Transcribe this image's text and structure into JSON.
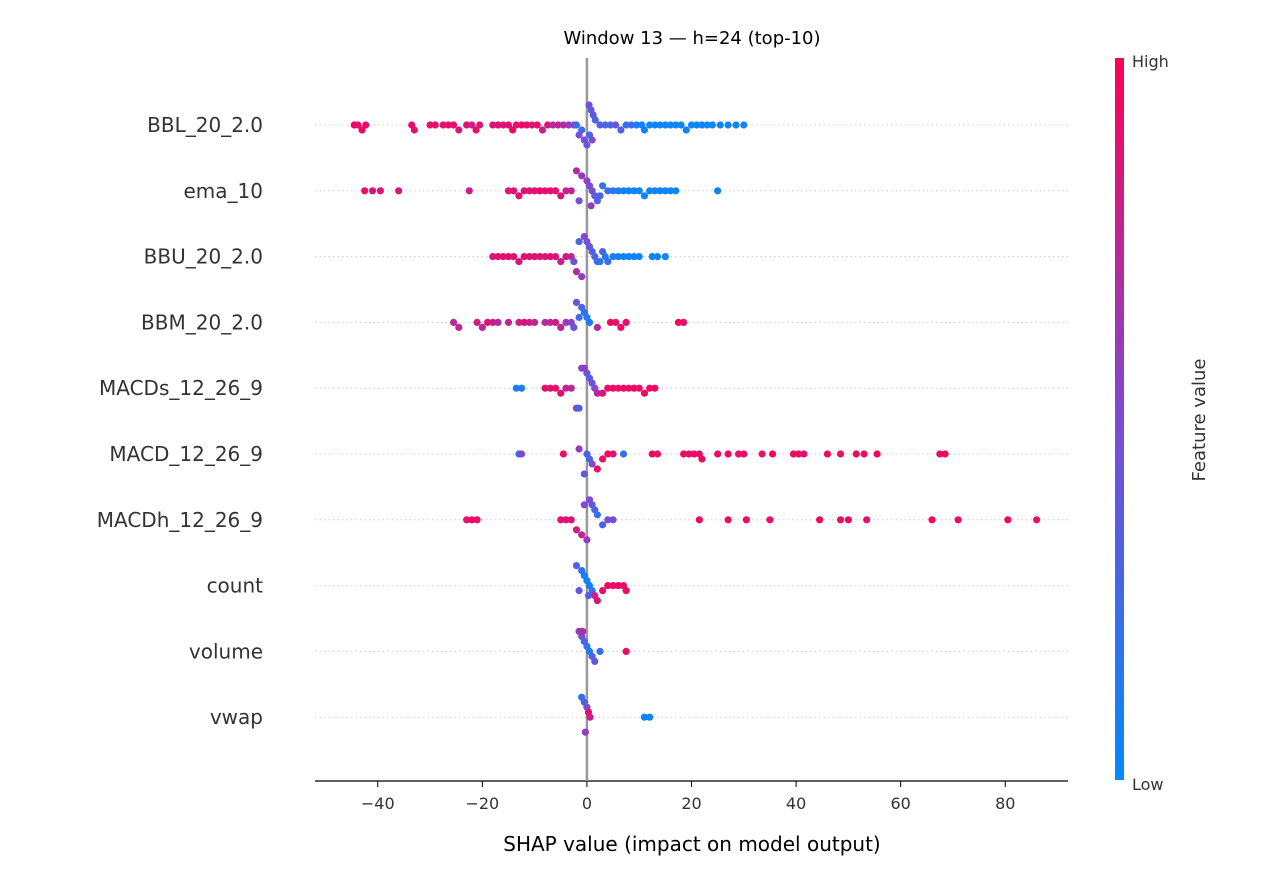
{
  "chart_data": {
    "type": "scatter",
    "subtype": "shap-beeswarm",
    "title": "Window 13 — h=24 (top-10)",
    "xlabel": "SHAP value (impact on model output)",
    "xlim": [
      -52,
      92
    ],
    "xticks": [
      -40,
      -20,
      0,
      20,
      40,
      60,
      80
    ],
    "colorbar": {
      "label": "Feature value",
      "high_label": "High",
      "low_label": "Low",
      "low_color": "#008bfb",
      "high_color": "#ff0052"
    },
    "features": [
      {
        "name": "BBL_20_2.0",
        "points": [
          [
            -44.5,
            0.95
          ],
          [
            -43.8,
            0.9
          ],
          [
            -43,
            0.95
          ],
          [
            -42.3,
            0.9
          ],
          [
            -33.5,
            0.92
          ],
          [
            -33,
            0.9
          ],
          [
            -30,
            0.9
          ],
          [
            -29,
            0.92
          ],
          [
            -27.5,
            0.9
          ],
          [
            -26.5,
            0.88
          ],
          [
            -25.5,
            0.9
          ],
          [
            -24.5,
            0.85
          ],
          [
            -23,
            0.88
          ],
          [
            -22,
            0.8
          ],
          [
            -21.2,
            0.9
          ],
          [
            -20.5,
            0.85
          ],
          [
            -18,
            0.85
          ],
          [
            -17,
            0.9
          ],
          [
            -16,
            0.85
          ],
          [
            -15,
            0.9
          ],
          [
            -14.2,
            0.95
          ],
          [
            -13.5,
            0.9
          ],
          [
            -12.5,
            0.95
          ],
          [
            -11.5,
            0.9
          ],
          [
            -10.5,
            0.85
          ],
          [
            -9.5,
            0.9
          ],
          [
            -8.5,
            0.8
          ],
          [
            -7.5,
            0.85
          ],
          [
            -6.5,
            0.7
          ],
          [
            -5.5,
            0.75
          ],
          [
            -4.5,
            0.7
          ],
          [
            -3.5,
            0.6
          ],
          [
            -2.5,
            0.55
          ],
          [
            -1.5,
            0.5
          ],
          [
            -0.5,
            0.45
          ],
          [
            0,
            0.4
          ],
          [
            0.4,
            0.45
          ],
          [
            0.8,
            0.35
          ],
          [
            1.2,
            0.4
          ],
          [
            1.6,
            0.3
          ],
          [
            2.5,
            0.35
          ],
          [
            3.5,
            0.3
          ],
          [
            4.5,
            0.3
          ],
          [
            5.5,
            0.4
          ],
          [
            6.5,
            0.35
          ],
          [
            7.5,
            0.2
          ],
          [
            8.5,
            0.25
          ],
          [
            9.5,
            0.1
          ],
          [
            10.5,
            0.1
          ],
          [
            11,
            0.05
          ],
          [
            12,
            0.05
          ],
          [
            13,
            0.05
          ],
          [
            14,
            0.05
          ],
          [
            15,
            0.05
          ],
          [
            16,
            0.05
          ],
          [
            17,
            0.05
          ],
          [
            18,
            0.05
          ],
          [
            19,
            0.05
          ],
          [
            20,
            0.05
          ],
          [
            21,
            0.05
          ],
          [
            22,
            0.05
          ],
          [
            23,
            0.05
          ],
          [
            24,
            0.05
          ],
          [
            25.5,
            0.05
          ],
          [
            27,
            0.05
          ],
          [
            28.5,
            0.05
          ],
          [
            30,
            0.05
          ],
          [
            -2,
            0.2
          ],
          [
            -1,
            0.25
          ],
          [
            0.5,
            0.3
          ],
          [
            1,
            0.5
          ]
        ]
      },
      {
        "name": "ema_10",
        "points": [
          [
            -42.5,
            0.9
          ],
          [
            -41,
            0.85
          ],
          [
            -39.5,
            0.88
          ],
          [
            -36,
            0.85
          ],
          [
            -22.5,
            0.8
          ],
          [
            -15,
            0.88
          ],
          [
            -14,
            0.85
          ],
          [
            -13,
            0.9
          ],
          [
            -12,
            0.88
          ],
          [
            -11,
            0.9
          ],
          [
            -10,
            0.85
          ],
          [
            -9,
            0.95
          ],
          [
            -8,
            0.9
          ],
          [
            -7,
            0.92
          ],
          [
            -6,
            0.88
          ],
          [
            -5,
            0.85
          ],
          [
            -4,
            0.8
          ],
          [
            -3,
            0.75
          ],
          [
            -2,
            0.7
          ],
          [
            -1,
            0.6
          ],
          [
            0,
            0.55
          ],
          [
            0.5,
            0.5
          ],
          [
            1,
            0.45
          ],
          [
            1.5,
            0.4
          ],
          [
            2,
            0.35
          ],
          [
            2.5,
            0.3
          ],
          [
            3,
            0.2
          ],
          [
            4,
            0.25
          ],
          [
            5,
            0.15
          ],
          [
            6,
            0.1
          ],
          [
            7,
            0.1
          ],
          [
            8,
            0.05
          ],
          [
            9,
            0.05
          ],
          [
            10,
            0.05
          ],
          [
            11,
            0.05
          ],
          [
            12,
            0.05
          ],
          [
            13,
            0.05
          ],
          [
            14,
            0.05
          ],
          [
            15,
            0.05
          ],
          [
            16,
            0.05
          ],
          [
            17,
            0.05
          ],
          [
            25,
            0.05
          ],
          [
            -1.5,
            0.5
          ],
          [
            0.8,
            0.6
          ]
        ]
      },
      {
        "name": "BBU_20_2.0",
        "points": [
          [
            -18,
            0.85
          ],
          [
            -17,
            0.9
          ],
          [
            -16,
            0.88
          ],
          [
            -15,
            0.9
          ],
          [
            -14,
            0.85
          ],
          [
            -13,
            0.88
          ],
          [
            -12,
            0.9
          ],
          [
            -11,
            0.85
          ],
          [
            -10,
            0.9
          ],
          [
            -9,
            0.88
          ],
          [
            -8,
            0.85
          ],
          [
            -7,
            0.9
          ],
          [
            -6,
            0.85
          ],
          [
            -5,
            0.8
          ],
          [
            -4,
            0.85
          ],
          [
            -3,
            0.75
          ],
          [
            -2,
            0.7
          ],
          [
            -1,
            0.6
          ],
          [
            -0.5,
            0.55
          ],
          [
            0,
            0.45
          ],
          [
            0.5,
            0.4
          ],
          [
            1,
            0.35
          ],
          [
            1.5,
            0.3
          ],
          [
            2,
            0.25
          ],
          [
            2.5,
            0.2
          ],
          [
            3,
            0.3
          ],
          [
            3.5,
            0.15
          ],
          [
            4,
            0.2
          ],
          [
            5,
            0.1
          ],
          [
            6,
            0.1
          ],
          [
            7,
            0.05
          ],
          [
            8,
            0.05
          ],
          [
            9,
            0.05
          ],
          [
            10,
            0.05
          ],
          [
            12.5,
            0.05
          ],
          [
            13.5,
            0.05
          ],
          [
            15,
            0.05
          ],
          [
            -1.5,
            0.3
          ],
          [
            -2.5,
            0.4
          ]
        ]
      },
      {
        "name": "BBM_20_2.0",
        "points": [
          [
            -25.5,
            0.7
          ],
          [
            -24.5,
            0.75
          ],
          [
            -21,
            0.8
          ],
          [
            -20,
            0.75
          ],
          [
            -19,
            0.85
          ],
          [
            -18,
            0.8
          ],
          [
            -17,
            0.7
          ],
          [
            -15,
            0.75
          ],
          [
            -13,
            0.8
          ],
          [
            -12,
            0.85
          ],
          [
            -11,
            0.8
          ],
          [
            -10,
            0.75
          ],
          [
            -8,
            0.7
          ],
          [
            -7,
            0.75
          ],
          [
            -6,
            0.8
          ],
          [
            -5,
            0.75
          ],
          [
            -4,
            0.6
          ],
          [
            -3,
            0.55
          ],
          [
            -2,
            0.45
          ],
          [
            -1,
            0.3
          ],
          [
            -0.5,
            0.2
          ],
          [
            0,
            0.15
          ],
          [
            0.5,
            0.1
          ],
          [
            2,
            0.7
          ],
          [
            4.5,
            0.95
          ],
          [
            5.5,
            0.9
          ],
          [
            6.5,
            0.92
          ],
          [
            7.5,
            0.9
          ],
          [
            17.5,
            0.95
          ],
          [
            18.5,
            0.9
          ],
          [
            -1.5,
            0.25
          ],
          [
            -2.5,
            0.4
          ]
        ]
      },
      {
        "name": "MACDs_12_26_9",
        "points": [
          [
            -13.5,
            0.1
          ],
          [
            -12.5,
            0.12
          ],
          [
            -8,
            0.9
          ],
          [
            -7,
            0.88
          ],
          [
            -6,
            0.92
          ],
          [
            -5,
            0.85
          ],
          [
            -4,
            0.8
          ],
          [
            -3,
            0.75
          ],
          [
            -2,
            0.6
          ],
          [
            -1,
            0.5
          ],
          [
            0,
            0.4
          ],
          [
            0.5,
            0.35
          ],
          [
            1,
            0.45
          ],
          [
            1.5,
            0.5
          ],
          [
            2,
            0.75
          ],
          [
            3,
            0.85
          ],
          [
            4,
            0.9
          ],
          [
            5,
            0.95
          ],
          [
            6,
            0.9
          ],
          [
            7,
            0.95
          ],
          [
            8,
            0.92
          ],
          [
            9,
            0.95
          ],
          [
            10,
            0.9
          ],
          [
            11,
            0.95
          ],
          [
            12,
            0.92
          ],
          [
            13,
            0.95
          ],
          [
            -1.5,
            0.3
          ],
          [
            -0.5,
            0.6
          ]
        ]
      },
      {
        "name": "MACD_12_26_9",
        "points": [
          [
            -13,
            0.2
          ],
          [
            -12.5,
            0.5
          ],
          [
            -4.5,
            0.9
          ],
          [
            -1.5,
            0.6
          ],
          [
            0,
            0.3
          ],
          [
            0.5,
            0.25
          ],
          [
            1,
            0.5
          ],
          [
            2,
            0.9
          ],
          [
            3,
            0.92
          ],
          [
            4,
            0.95
          ],
          [
            5,
            0.9
          ],
          [
            7,
            0.2
          ],
          [
            12.5,
            0.95
          ],
          [
            13.5,
            0.9
          ],
          [
            18.5,
            0.95
          ],
          [
            19.5,
            0.92
          ],
          [
            20.5,
            0.95
          ],
          [
            21.5,
            0.9
          ],
          [
            22,
            0.95
          ],
          [
            25,
            0.92
          ],
          [
            27,
            0.95
          ],
          [
            29,
            0.9
          ],
          [
            30,
            0.95
          ],
          [
            33.5,
            0.9
          ],
          [
            35.5,
            0.95
          ],
          [
            39.5,
            0.92
          ],
          [
            40.5,
            0.95
          ],
          [
            41.5,
            0.9
          ],
          [
            46,
            0.95
          ],
          [
            48.5,
            0.92
          ],
          [
            51.5,
            0.95
          ],
          [
            53,
            0.9
          ],
          [
            55.5,
            0.95
          ],
          [
            67.5,
            0.92
          ],
          [
            68.5,
            0.95
          ],
          [
            -0.5,
            0.4
          ]
        ]
      },
      {
        "name": "MACDh_12_26_9",
        "points": [
          [
            -23,
            0.9
          ],
          [
            -22,
            0.95
          ],
          [
            -21,
            0.9
          ],
          [
            -5,
            0.9
          ],
          [
            -4,
            0.85
          ],
          [
            -3,
            0.9
          ],
          [
            -2,
            0.8
          ],
          [
            -1,
            0.75
          ],
          [
            0,
            0.6
          ],
          [
            0.5,
            0.5
          ],
          [
            1,
            0.4
          ],
          [
            1.5,
            0.3
          ],
          [
            2,
            0.2
          ],
          [
            3,
            0.3
          ],
          [
            4,
            0.4
          ],
          [
            5,
            0.5
          ],
          [
            21.5,
            0.95
          ],
          [
            27,
            0.92
          ],
          [
            30.5,
            0.95
          ],
          [
            35,
            0.9
          ],
          [
            44.5,
            0.95
          ],
          [
            48.5,
            0.92
          ],
          [
            50,
            0.95
          ],
          [
            53.5,
            0.9
          ],
          [
            66,
            0.95
          ],
          [
            71,
            0.92
          ],
          [
            80.5,
            0.95
          ],
          [
            86,
            0.9
          ],
          [
            -0.5,
            0.5
          ]
        ]
      },
      {
        "name": "count",
        "points": [
          [
            -2,
            0.3
          ],
          [
            -1,
            0.2
          ],
          [
            -0.5,
            0.1
          ],
          [
            0,
            0.05
          ],
          [
            0.5,
            0.1
          ],
          [
            1,
            0.2
          ],
          [
            1.5,
            0.8
          ],
          [
            2,
            0.85
          ],
          [
            3,
            0.9
          ],
          [
            4,
            0.95
          ],
          [
            5,
            0.92
          ],
          [
            6,
            0.95
          ],
          [
            7,
            0.9
          ],
          [
            7.5,
            0.95
          ],
          [
            -1.5,
            0.4
          ],
          [
            0.3,
            0.3
          ]
        ]
      },
      {
        "name": "volume",
        "points": [
          [
            -1.5,
            0.6
          ],
          [
            -1,
            0.5
          ],
          [
            -0.5,
            0.3
          ],
          [
            0,
            0.2
          ],
          [
            0.5,
            0.1
          ],
          [
            1,
            0.3
          ],
          [
            1.5,
            0.4
          ],
          [
            2.5,
            0.2
          ],
          [
            7.5,
            0.95
          ],
          [
            -0.8,
            0.7
          ]
        ]
      },
      {
        "name": "vwap",
        "points": [
          [
            -1,
            0.2
          ],
          [
            -0.5,
            0.3
          ],
          [
            0,
            0.5
          ],
          [
            0.3,
            0.9
          ],
          [
            0.6,
            0.8
          ],
          [
            11,
            0.05
          ],
          [
            12,
            0.05
          ],
          [
            -0.3,
            0.6
          ]
        ]
      }
    ]
  }
}
